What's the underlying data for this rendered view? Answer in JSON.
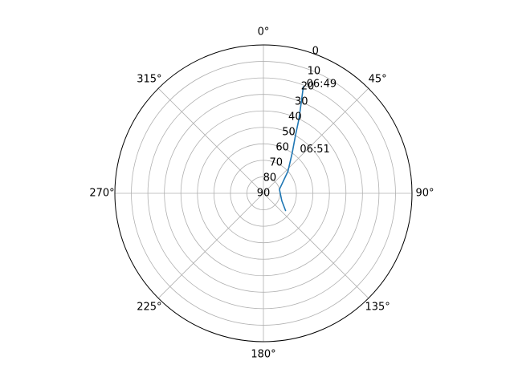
{
  "chart_data": {
    "type": "line",
    "projection": "polar",
    "theta_zero_location": "N",
    "theta_direction": "clockwise",
    "theta_tick_labels": [
      "0°",
      "45°",
      "90°",
      "135°",
      "180°",
      "225°",
      "270°",
      "315°"
    ],
    "theta_ticks_deg": [
      0,
      45,
      90,
      135,
      180,
      225,
      270,
      315
    ],
    "r_axis": "elevation",
    "r_inverted": true,
    "r_ticks": [
      0,
      10,
      20,
      30,
      40,
      50,
      60,
      70,
      80,
      90
    ],
    "r_tick_labels": [
      "0",
      "10",
      "20",
      "30",
      "40",
      "50",
      "60",
      "70",
      "80",
      "90"
    ],
    "r_label_angle_deg": 22.5,
    "rlim": [
      0,
      90
    ],
    "grid": true,
    "series": [
      {
        "color": "#1f77b4",
        "points": [
          {
            "azimuth": 20.5,
            "elevation": 21
          },
          {
            "azimuth": 22.5,
            "elevation": 30
          },
          {
            "azimuth": 25.5,
            "elevation": 40
          },
          {
            "azimuth": 29.0,
            "elevation": 50
          },
          {
            "azimuth": 35.5,
            "elevation": 60
          },
          {
            "azimuth": 48.0,
            "elevation": 70
          },
          {
            "azimuth": 76.0,
            "elevation": 80
          },
          {
            "azimuth": 112.0,
            "elevation": 78
          },
          {
            "azimuth": 128.0,
            "elevation": 73
          }
        ]
      }
    ],
    "annotations": [
      {
        "text": "06:49",
        "azimuth": 28.0,
        "elevation": 15
      },
      {
        "text": "06:51",
        "azimuth": 49.5,
        "elevation": 49
      }
    ]
  }
}
